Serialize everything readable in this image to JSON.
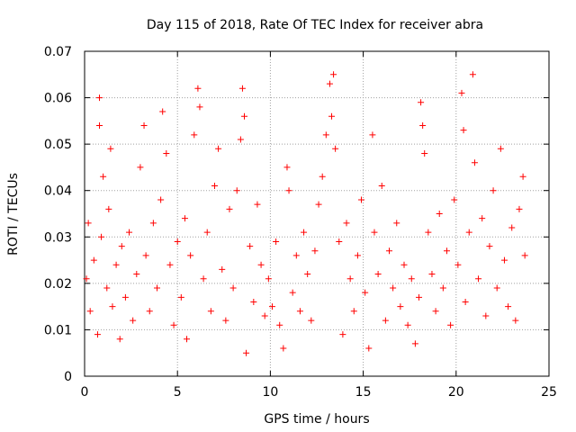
{
  "chart_data": {
    "type": "scatter",
    "title": "Day 115 of 2018, Rate Of TEC Index for receiver abra",
    "xlabel": "GPS time / hours",
    "ylabel": "ROTI / TECUs",
    "xlim": [
      0,
      25
    ],
    "ylim": [
      0,
      0.07
    ],
    "x_ticks": [
      "0",
      "5",
      "10",
      "15",
      "20",
      "25"
    ],
    "y_ticks": [
      "0",
      "0.01",
      "0.02",
      "0.03",
      "0.04",
      "0.05",
      "0.06",
      "0.07"
    ],
    "grid": true,
    "marker": "plus",
    "color": "#ff0000",
    "series": [
      {
        "name": "",
        "points": [
          [
            0.1,
            0.021
          ],
          [
            0.2,
            0.033
          ],
          [
            0.3,
            0.014
          ],
          [
            0.5,
            0.025
          ],
          [
            0.7,
            0.009
          ],
          [
            0.8,
            0.06
          ],
          [
            0.8,
            0.054
          ],
          [
            0.9,
            0.03
          ],
          [
            1.0,
            0.043
          ],
          [
            1.2,
            0.019
          ],
          [
            1.3,
            0.036
          ],
          [
            1.4,
            0.049
          ],
          [
            1.5,
            0.015
          ],
          [
            1.7,
            0.024
          ],
          [
            1.9,
            0.008
          ],
          [
            2.0,
            0.028
          ],
          [
            2.2,
            0.017
          ],
          [
            2.4,
            0.031
          ],
          [
            2.6,
            0.012
          ],
          [
            2.8,
            0.022
          ],
          [
            3.0,
            0.045
          ],
          [
            3.2,
            0.054
          ],
          [
            3.3,
            0.026
          ],
          [
            3.5,
            0.014
          ],
          [
            3.7,
            0.033
          ],
          [
            3.9,
            0.019
          ],
          [
            4.1,
            0.038
          ],
          [
            4.2,
            0.057
          ],
          [
            4.4,
            0.048
          ],
          [
            4.6,
            0.024
          ],
          [
            4.8,
            0.011
          ],
          [
            5.0,
            0.029
          ],
          [
            5.2,
            0.017
          ],
          [
            5.4,
            0.034
          ],
          [
            5.5,
            0.008
          ],
          [
            5.7,
            0.026
          ],
          [
            5.9,
            0.052
          ],
          [
            6.1,
            0.062
          ],
          [
            6.2,
            0.058
          ],
          [
            6.4,
            0.021
          ],
          [
            6.6,
            0.031
          ],
          [
            6.8,
            0.014
          ],
          [
            7.0,
            0.041
          ],
          [
            7.2,
            0.049
          ],
          [
            7.4,
            0.023
          ],
          [
            7.6,
            0.012
          ],
          [
            7.8,
            0.036
          ],
          [
            8.0,
            0.019
          ],
          [
            8.2,
            0.04
          ],
          [
            8.4,
            0.051
          ],
          [
            8.5,
            0.062
          ],
          [
            8.6,
            0.056
          ],
          [
            8.7,
            0.005
          ],
          [
            8.9,
            0.028
          ],
          [
            9.1,
            0.016
          ],
          [
            9.3,
            0.037
          ],
          [
            9.5,
            0.024
          ],
          [
            9.7,
            0.013
          ],
          [
            9.9,
            0.021
          ],
          [
            10.1,
            0.015
          ],
          [
            10.3,
            0.029
          ],
          [
            10.5,
            0.011
          ],
          [
            10.7,
            0.006
          ],
          [
            10.9,
            0.045
          ],
          [
            11.0,
            0.04
          ],
          [
            11.2,
            0.018
          ],
          [
            11.4,
            0.026
          ],
          [
            11.6,
            0.014
          ],
          [
            11.8,
            0.031
          ],
          [
            12.0,
            0.022
          ],
          [
            12.2,
            0.012
          ],
          [
            12.4,
            0.027
          ],
          [
            12.6,
            0.037
          ],
          [
            12.8,
            0.043
          ],
          [
            13.0,
            0.052
          ],
          [
            13.2,
            0.063
          ],
          [
            13.3,
            0.056
          ],
          [
            13.4,
            0.065
          ],
          [
            13.5,
            0.049
          ],
          [
            13.7,
            0.029
          ],
          [
            13.9,
            0.009
          ],
          [
            14.1,
            0.033
          ],
          [
            14.3,
            0.021
          ],
          [
            14.5,
            0.014
          ],
          [
            14.7,
            0.026
          ],
          [
            14.9,
            0.038
          ],
          [
            15.1,
            0.018
          ],
          [
            15.3,
            0.006
          ],
          [
            15.5,
            0.052
          ],
          [
            15.6,
            0.031
          ],
          [
            15.8,
            0.022
          ],
          [
            16.0,
            0.041
          ],
          [
            16.2,
            0.012
          ],
          [
            16.4,
            0.027
          ],
          [
            16.6,
            0.019
          ],
          [
            16.8,
            0.033
          ],
          [
            17.0,
            0.015
          ],
          [
            17.2,
            0.024
          ],
          [
            17.4,
            0.011
          ],
          [
            17.6,
            0.021
          ],
          [
            17.8,
            0.007
          ],
          [
            18.0,
            0.017
          ],
          [
            18.1,
            0.059
          ],
          [
            18.2,
            0.054
          ],
          [
            18.3,
            0.048
          ],
          [
            18.5,
            0.031
          ],
          [
            18.7,
            0.022
          ],
          [
            18.9,
            0.014
          ],
          [
            19.1,
            0.035
          ],
          [
            19.3,
            0.019
          ],
          [
            19.5,
            0.027
          ],
          [
            19.7,
            0.011
          ],
          [
            19.9,
            0.038
          ],
          [
            20.1,
            0.024
          ],
          [
            20.3,
            0.061
          ],
          [
            20.4,
            0.053
          ],
          [
            20.5,
            0.016
          ],
          [
            20.7,
            0.031
          ],
          [
            20.9,
            0.065
          ],
          [
            21.0,
            0.046
          ],
          [
            21.2,
            0.021
          ],
          [
            21.4,
            0.034
          ],
          [
            21.6,
            0.013
          ],
          [
            21.8,
            0.028
          ],
          [
            22.0,
            0.04
          ],
          [
            22.2,
            0.019
          ],
          [
            22.4,
            0.049
          ],
          [
            22.6,
            0.025
          ],
          [
            22.8,
            0.015
          ],
          [
            23.0,
            0.032
          ],
          [
            23.2,
            0.012
          ],
          [
            23.4,
            0.036
          ],
          [
            23.6,
            0.043
          ],
          [
            23.7,
            0.026
          ]
        ]
      }
    ]
  }
}
